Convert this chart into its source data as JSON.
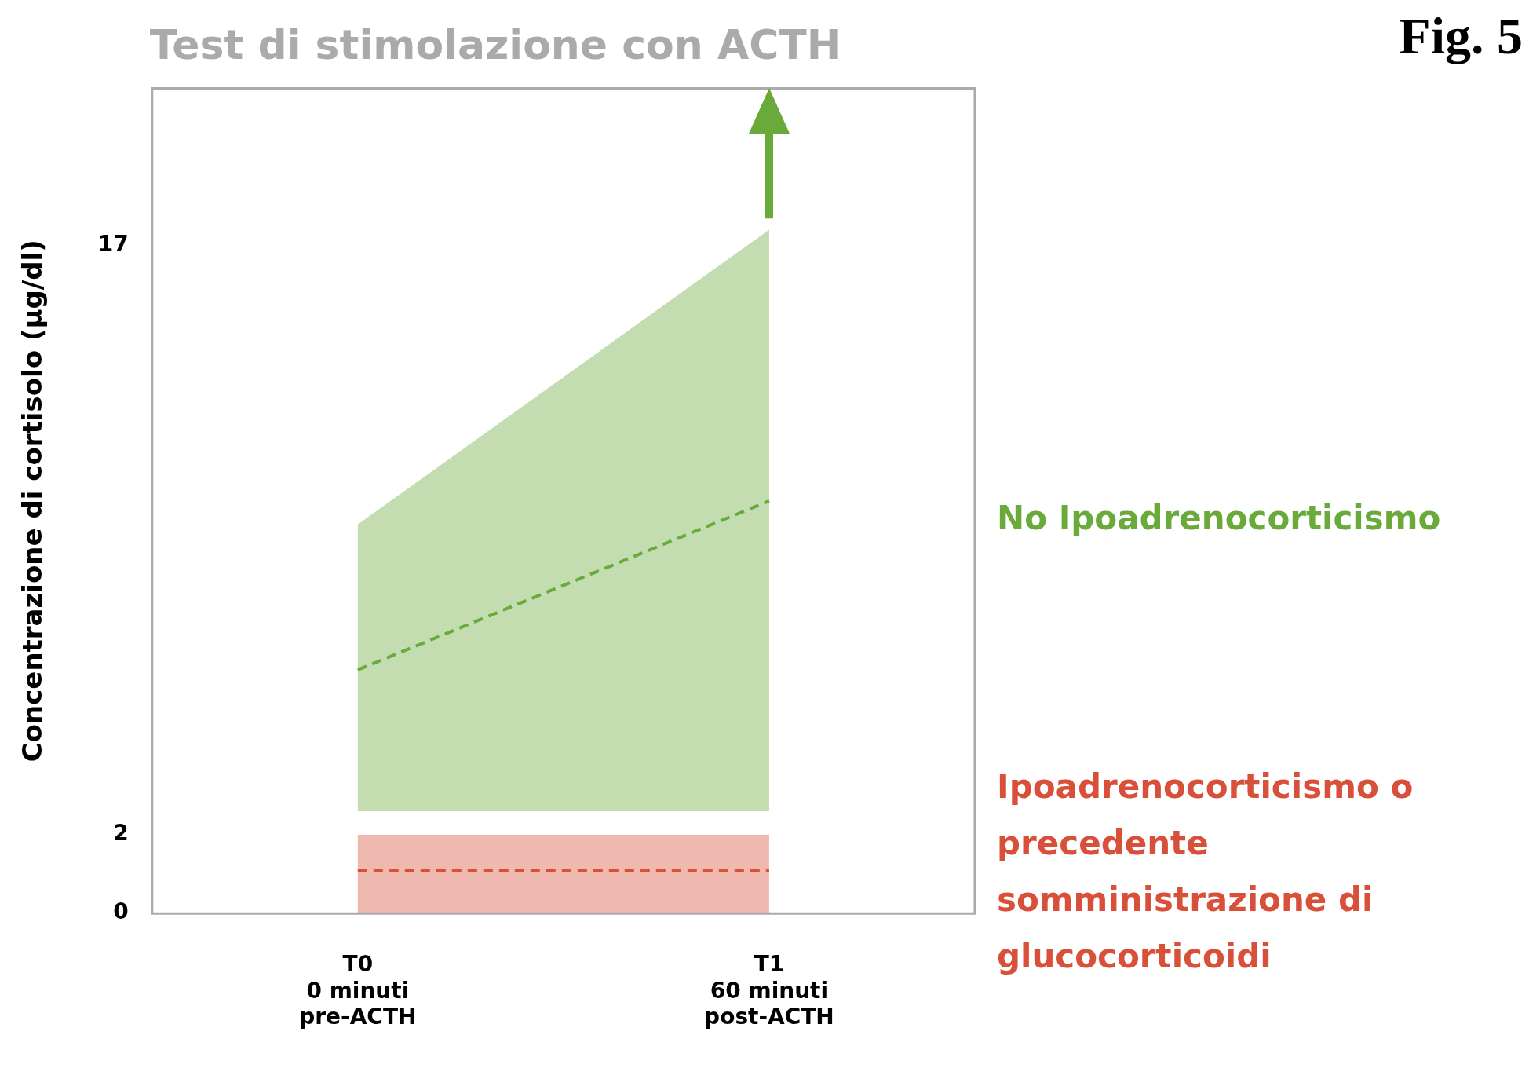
{
  "chart_data": {
    "type": "line",
    "title": "Test di stimolazione con ACTH",
    "ylabel": "Concentrazione di cortisolo (µg/dl)",
    "categories": [
      "T0\n0 minuti\npre-ACTH",
      "T1\n60 minuti\npost-ACTH"
    ],
    "series": [
      {
        "name": "No Ipoadrenocorticismo",
        "color": "#6aaa3a",
        "values": [
          6.2,
          10.5
        ],
        "lower": [
          2.6,
          2.6
        ],
        "upper": [
          9.9,
          17.4
        ]
      },
      {
        "name": "Ipoadrenocorticismo o precedente somministrazione di glucocorticoidi",
        "color": "#d9503a",
        "values": [
          1.1,
          1.1
        ],
        "lower": [
          0,
          0
        ],
        "upper": [
          2,
          2
        ]
      }
    ],
    "ylim": [
      0,
      21
    ],
    "yticks": [
      0,
      2,
      17
    ],
    "line_style": "dashed",
    "marker": "none",
    "grid": false,
    "legend": false,
    "annotations": [
      "Fig. 5"
    ]
  }
}
